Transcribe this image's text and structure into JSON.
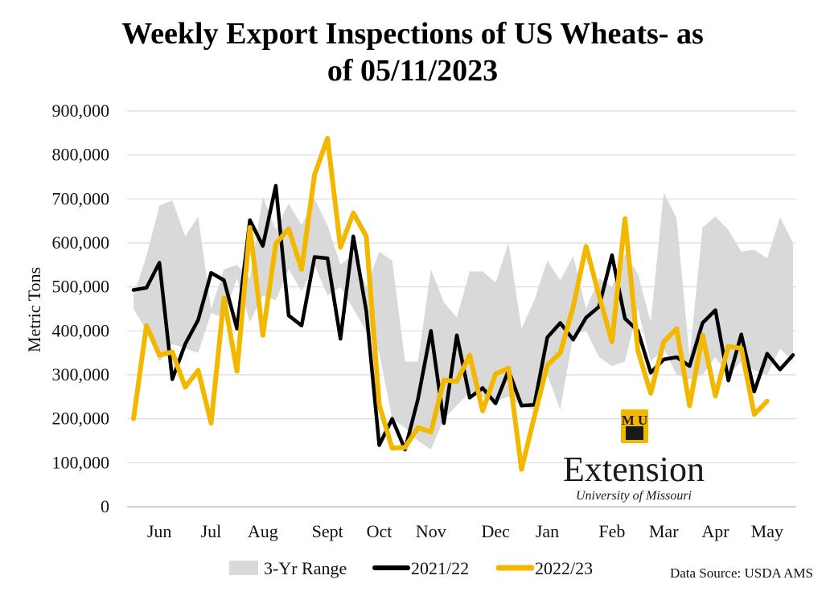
{
  "chart_data": {
    "type": "line",
    "title_line1": "Weekly Export Inspections of US Wheats- as",
    "title_line2": "of 05/11/2023",
    "ylabel": "Metric Tons",
    "xlabel": "",
    "ylim": [
      0,
      900000
    ],
    "y_ticks": [
      "0",
      "100,000",
      "200,000",
      "300,000",
      "400,000",
      "500,000",
      "600,000",
      "700,000",
      "800,000",
      "900,000"
    ],
    "y_tick_values": [
      0,
      100000,
      200000,
      300000,
      400000,
      500000,
      600000,
      700000,
      800000,
      900000
    ],
    "grid": true,
    "week_count": 52,
    "months": [
      {
        "label": "Jun",
        "week": 2
      },
      {
        "label": "Jul",
        "week": 6
      },
      {
        "label": "Aug",
        "week": 10
      },
      {
        "label": "Sept",
        "week": 15
      },
      {
        "label": "Oct",
        "week": 19
      },
      {
        "label": "Nov",
        "week": 23
      },
      {
        "label": "Dec",
        "week": 28
      },
      {
        "label": "Jan",
        "week": 32
      },
      {
        "label": "Feb",
        "week": 37
      },
      {
        "label": "Mar",
        "week": 41
      },
      {
        "label": "Apr",
        "week": 45
      },
      {
        "label": "May",
        "week": 49
      }
    ],
    "series": [
      {
        "name": "3-Yr Range",
        "kind": "range",
        "color": "#d9d9d9",
        "upper": [
          480000,
          570000,
          685000,
          697000,
          615000,
          660000,
          450000,
          540000,
          550000,
          520000,
          705000,
          630000,
          690000,
          640000,
          700000,
          640000,
          550000,
          575000,
          500000,
          580000,
          560000,
          330000,
          330000,
          540000,
          465000,
          430000,
          535000,
          535000,
          510000,
          600000,
          405000,
          470000,
          560000,
          515000,
          570000,
          450000,
          520000,
          500000,
          575000,
          530000,
          420000,
          715000,
          655000,
          340000,
          635000,
          660000,
          630000,
          580000,
          585000,
          565000,
          658000,
          600000
        ],
        "lower": [
          450000,
          400000,
          330000,
          370000,
          360000,
          350000,
          440000,
          430000,
          520000,
          420000,
          480000,
          470000,
          540000,
          490000,
          550000,
          480000,
          500000,
          450000,
          400000,
          350000,
          200000,
          180000,
          150000,
          130000,
          200000,
          230000,
          260000,
          250000,
          240000,
          250000,
          230000,
          220000,
          300000,
          220000,
          390000,
          400000,
          340000,
          320000,
          330000,
          450000,
          330000,
          360000,
          300000,
          290000,
          300000,
          340000,
          300000,
          330000,
          310000,
          300000,
          360000,
          330000
        ]
      },
      {
        "name": "2021/22",
        "kind": "line",
        "color": "#000000",
        "values": [
          493000,
          498000,
          555000,
          290000,
          370000,
          425000,
          532000,
          515000,
          405000,
          652000,
          593000,
          730000,
          435000,
          412000,
          568000,
          565000,
          382000,
          615000,
          445000,
          140000,
          200000,
          130000,
          245000,
          400000,
          190000,
          390000,
          248000,
          270000,
          235000,
          310000,
          230000,
          232000,
          385000,
          418000,
          380000,
          430000,
          455000,
          572000,
          428000,
          400000,
          305000,
          335000,
          340000,
          320000,
          418000,
          447000,
          287000,
          392000,
          262000,
          348000,
          312000,
          345000
        ]
      },
      {
        "name": "2022/23",
        "kind": "line",
        "color": "#f2b800",
        "values": [
          200000,
          412000,
          345000,
          352000,
          272000,
          310000,
          190000,
          475000,
          308000,
          635000,
          390000,
          598000,
          632000,
          540000,
          755000,
          838000,
          590000,
          668000,
          615000,
          232000,
          133000,
          135000,
          180000,
          170000,
          288000,
          285000,
          345000,
          218000,
          302000,
          315000,
          85000,
          205000,
          322000,
          350000,
          455000,
          592000,
          480000,
          375000,
          655000,
          355000,
          258000,
          375000,
          405000,
          230000,
          390000,
          252000,
          365000,
          360000,
          210000,
          240000
        ]
      }
    ],
    "legend": [
      {
        "label": "3-Yr Range",
        "kind": "range",
        "color": "#d9d9d9"
      },
      {
        "label": "2021/22",
        "kind": "line",
        "color": "#000000"
      },
      {
        "label": "2022/23",
        "kind": "line",
        "color": "#f2b800"
      }
    ],
    "legend_position": "bottom"
  },
  "source_text": "Data Source: USDA AMS",
  "logo": {
    "name": "Extension",
    "subtitle": "University of Missouri",
    "mark": "M U",
    "mark_color": "#f2b800"
  }
}
